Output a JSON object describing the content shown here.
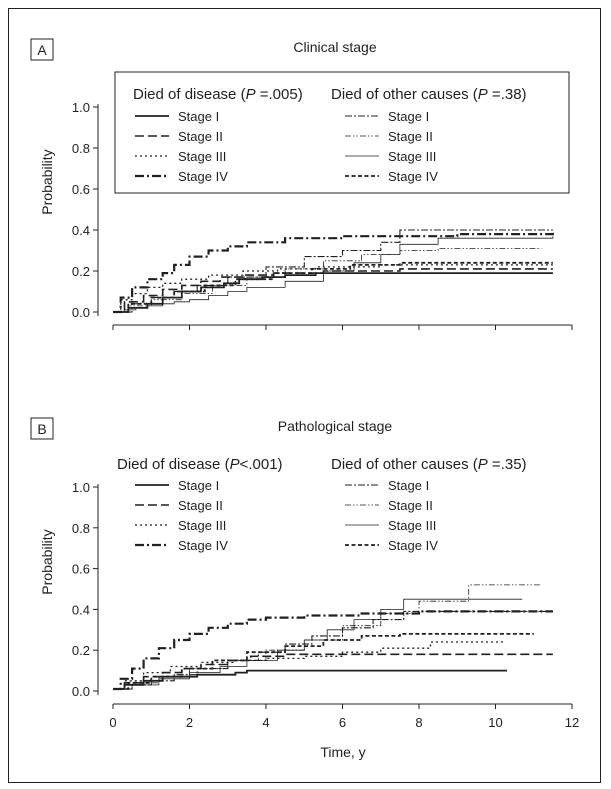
{
  "panels": [
    {
      "letter": "A",
      "title": "Clinical stage",
      "legend": {
        "group1": {
          "prefix": "Died of disease (",
          "p_italic": "P",
          "suffix": " =.005)"
        },
        "group2": {
          "prefix": "Died of other causes (",
          "p_italic": "P",
          "suffix": " =.38)"
        },
        "stages": [
          "Stage I",
          "Stage II",
          "Stage III",
          "Stage IV"
        ]
      }
    },
    {
      "letter": "B",
      "title": "Pathological stage",
      "legend": {
        "group1": {
          "prefix": "Died of disease (",
          "p_italic": "P",
          "suffix": "<.001)"
        },
        "group2": {
          "prefix": "Died of other causes (",
          "p_italic": "P",
          "suffix": " =.35)"
        },
        "stages": [
          "Stage I",
          "Stage II",
          "Stage III",
          "Stage IV"
        ]
      }
    }
  ],
  "chart_data": [
    {
      "type": "line",
      "title": "Clinical stage",
      "ylabel": "Probability",
      "xlabel": "",
      "xlim": [
        0,
        12
      ],
      "ylim": [
        0,
        1.0
      ],
      "yticks": [
        "0.0",
        "0.2",
        "0.4",
        "0.6",
        "0.8",
        "1.0"
      ],
      "series": [
        {
          "name": "Died of disease Stage I",
          "group": "disease",
          "stage": "I",
          "x": [
            0,
            0.4,
            0.9,
            1.3,
            1.8,
            2.3,
            2.9,
            3.3,
            3.9,
            4.5,
            5.3,
            11.5
          ],
          "y": [
            0,
            0.02,
            0.04,
            0.07,
            0.1,
            0.12,
            0.14,
            0.16,
            0.17,
            0.18,
            0.19,
            0.19
          ]
        },
        {
          "name": "Died of disease Stage II",
          "group": "disease",
          "stage": "II",
          "x": [
            0,
            0.3,
            0.8,
            1.3,
            1.8,
            2.3,
            2.8,
            3.4,
            4.2,
            5.5,
            7.5,
            11.5
          ],
          "y": [
            0,
            0.05,
            0.08,
            0.11,
            0.13,
            0.15,
            0.17,
            0.18,
            0.19,
            0.2,
            0.21,
            0.21
          ]
        },
        {
          "name": "Died of disease Stage III",
          "group": "disease",
          "stage": "III",
          "x": [
            0,
            0.2,
            0.5,
            0.9,
            1.3,
            1.8,
            2.5,
            3.4,
            4.3,
            5.3,
            7.0,
            11.5
          ],
          "y": [
            0,
            0.06,
            0.09,
            0.12,
            0.14,
            0.16,
            0.18,
            0.2,
            0.21,
            0.22,
            0.23,
            0.23
          ]
        },
        {
          "name": "Died of disease Stage IV",
          "group": "disease",
          "stage": "IV",
          "x": [
            0,
            0.2,
            0.5,
            0.9,
            1.3,
            1.6,
            2.0,
            2.5,
            3.0,
            3.5,
            4.5,
            6.0,
            9.0,
            11.5
          ],
          "y": [
            0,
            0.07,
            0.12,
            0.16,
            0.19,
            0.23,
            0.27,
            0.3,
            0.32,
            0.34,
            0.36,
            0.37,
            0.38,
            0.4
          ]
        },
        {
          "name": "Died of other causes Stage I",
          "group": "other",
          "stage": "I",
          "x": [
            0,
            0.5,
            1.0,
            1.6,
            2.2,
            3.0,
            4.0,
            5.0,
            6.0,
            7.0,
            7.5,
            11.5
          ],
          "y": [
            0,
            0.04,
            0.07,
            0.1,
            0.13,
            0.17,
            0.22,
            0.27,
            0.3,
            0.34,
            0.4,
            0.4
          ]
        },
        {
          "name": "Died of other causes Stage II",
          "group": "other",
          "stage": "II",
          "x": [
            0,
            0.4,
            1.0,
            1.8,
            2.6,
            3.5,
            4.5,
            5.5,
            6.5,
            7.5,
            8.5,
            11.2
          ],
          "y": [
            0,
            0.03,
            0.06,
            0.09,
            0.13,
            0.17,
            0.21,
            0.25,
            0.28,
            0.3,
            0.31,
            0.31
          ]
        },
        {
          "name": "Died of other causes Stage III",
          "group": "other",
          "stage": "III",
          "x": [
            0,
            0.3,
            0.6,
            0.9,
            1.3,
            1.6,
            2.0,
            2.5,
            3.0,
            3.5,
            4.5,
            5.5,
            6.3,
            7.0,
            7.5,
            8.5,
            11.5
          ],
          "y": [
            0,
            0.01,
            0.02,
            0.03,
            0.04,
            0.05,
            0.06,
            0.08,
            0.1,
            0.12,
            0.15,
            0.2,
            0.24,
            0.28,
            0.33,
            0.36,
            0.37
          ]
        },
        {
          "name": "Died of other causes Stage IV",
          "group": "other",
          "stage": "IV",
          "x": [
            0,
            0.4,
            1.0,
            1.6,
            2.4,
            3.2,
            4.2,
            5.2,
            6.2,
            7.5,
            11.5
          ],
          "y": [
            0,
            0.04,
            0.07,
            0.1,
            0.13,
            0.16,
            0.19,
            0.21,
            0.23,
            0.24,
            0.24
          ]
        }
      ]
    },
    {
      "type": "line",
      "title": "Pathological stage",
      "ylabel": "Probability",
      "xlabel": "Time, y",
      "xlim": [
        0,
        12
      ],
      "ylim": [
        0,
        1.0
      ],
      "xticks": [
        "0",
        "2",
        "4",
        "6",
        "8",
        "10",
        "12"
      ],
      "yticks": [
        "0.0",
        "0.2",
        "0.4",
        "0.6",
        "0.8",
        "1.0"
      ],
      "series": [
        {
          "name": "Died of disease Stage I",
          "group": "disease",
          "stage": "I",
          "x": [
            0,
            0.3,
            0.8,
            1.3,
            2.2,
            3.2,
            3.5,
            10.3
          ],
          "y": [
            0.01,
            0.03,
            0.05,
            0.07,
            0.08,
            0.09,
            0.1,
            0.1
          ]
        },
        {
          "name": "Died of disease Stage II",
          "group": "disease",
          "stage": "II",
          "x": [
            0,
            0.3,
            0.8,
            1.3,
            1.8,
            2.3,
            3.0,
            3.6,
            4.5,
            5.5,
            7.0,
            11.5
          ],
          "y": [
            0.01,
            0.04,
            0.07,
            0.09,
            0.11,
            0.13,
            0.15,
            0.17,
            0.18,
            0.18,
            0.18,
            0.18
          ]
        },
        {
          "name": "Died of disease Stage III",
          "group": "disease",
          "stage": "III",
          "x": [
            0,
            0.3,
            0.8,
            1.5,
            2.3,
            3.2,
            4.0,
            5.0,
            6.0,
            7.0,
            8.3,
            10.2
          ],
          "y": [
            0.01,
            0.05,
            0.09,
            0.12,
            0.14,
            0.15,
            0.16,
            0.17,
            0.19,
            0.21,
            0.24,
            0.24
          ]
        },
        {
          "name": "Died of disease Stage IV",
          "group": "disease",
          "stage": "IV",
          "x": [
            0,
            0.2,
            0.5,
            0.8,
            1.2,
            1.6,
            2.0,
            2.5,
            3.0,
            3.5,
            4.0,
            5.0,
            6.5,
            8.0,
            11.5
          ],
          "y": [
            0.01,
            0.06,
            0.11,
            0.16,
            0.21,
            0.25,
            0.28,
            0.31,
            0.33,
            0.35,
            0.36,
            0.37,
            0.38,
            0.39,
            0.39
          ]
        },
        {
          "name": "Died of other causes Stage I",
          "group": "other",
          "stage": "I",
          "x": [
            0,
            0.5,
            1.0,
            1.6,
            2.2,
            3.0,
            3.8,
            4.5,
            5.2,
            6.0,
            6.8,
            7.6,
            11.5
          ],
          "y": [
            0.01,
            0.03,
            0.05,
            0.08,
            0.11,
            0.15,
            0.19,
            0.23,
            0.27,
            0.31,
            0.35,
            0.39,
            0.39
          ]
        },
        {
          "name": "Died of other causes Stage II",
          "group": "other",
          "stage": "II",
          "x": [
            0,
            0.5,
            1.2,
            2.0,
            3.0,
            4.0,
            5.0,
            6.0,
            7.0,
            8.0,
            9.3,
            11.2
          ],
          "y": [
            0.01,
            0.04,
            0.07,
            0.11,
            0.15,
            0.2,
            0.25,
            0.32,
            0.38,
            0.44,
            0.52,
            0.52
          ]
        },
        {
          "name": "Died of other causes Stage III",
          "group": "other",
          "stage": "III",
          "x": [
            0,
            0.5,
            1.2,
            2.0,
            2.8,
            3.5,
            4.3,
            5.0,
            5.6,
            6.3,
            7.0,
            7.6,
            10.7
          ],
          "y": [
            0.01,
            0.03,
            0.06,
            0.09,
            0.12,
            0.15,
            0.2,
            0.25,
            0.3,
            0.35,
            0.4,
            0.45,
            0.45
          ]
        },
        {
          "name": "Died of other causes Stage IV",
          "group": "other",
          "stage": "IV",
          "x": [
            0,
            0.4,
            1.0,
            1.8,
            2.6,
            3.5,
            4.5,
            5.5,
            6.5,
            7.5,
            11.0
          ],
          "y": [
            0.01,
            0.04,
            0.07,
            0.11,
            0.15,
            0.19,
            0.22,
            0.25,
            0.27,
            0.28,
            0.28
          ]
        }
      ]
    }
  ]
}
